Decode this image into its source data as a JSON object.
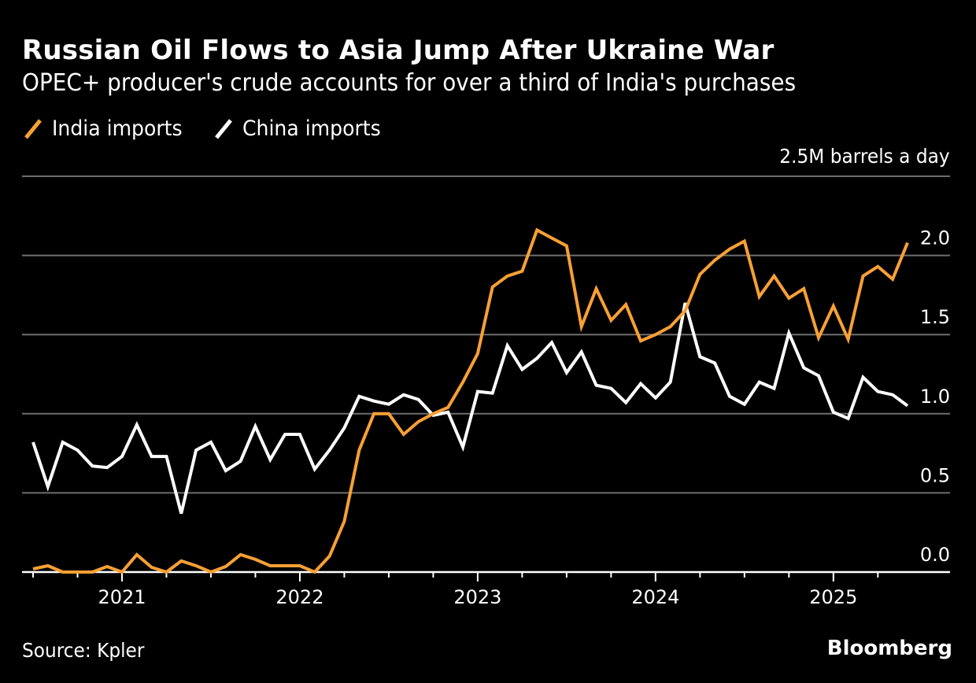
{
  "header": {
    "title": "Russian Oil Flows to Asia Jump After Ukraine War",
    "subtitle": "OPEC+ producer's crude accounts for over a third of India's purchases"
  },
  "legend": [
    {
      "label": "India imports",
      "color": "#f7a035"
    },
    {
      "label": "China imports",
      "color": "#ffffff"
    }
  ],
  "unit_label": "2.5M barrels a day",
  "footer": {
    "source": "Source: Kpler",
    "logo": "Bloomberg"
  },
  "chart_data": {
    "type": "line",
    "title": "Russian Oil Flows to Asia Jump After Ukraine War",
    "subtitle": "OPEC+ producer's crude accounts for over a third of India's purchases",
    "xlabel": "",
    "ylabel": "M barrels a day",
    "ylim": [
      0,
      2.5
    ],
    "yticks": [
      {
        "value": 0,
        "label": "0.0"
      },
      {
        "value": 0.5,
        "label": "0.5"
      },
      {
        "value": 1.0,
        "label": "1.0"
      },
      {
        "value": 1.5,
        "label": "1.5"
      },
      {
        "value": 2.0,
        "label": "2.0"
      },
      {
        "value": 2.5,
        "label": "2.5M barrels a day"
      }
    ],
    "x_start": "2020-07",
    "x_end": "2025-06",
    "x_unit": "month",
    "xtick_labels": [
      {
        "label": "2021",
        "month_index": 6
      },
      {
        "label": "2022",
        "month_index": 18
      },
      {
        "label": "2023",
        "month_index": 30
      },
      {
        "label": "2024",
        "month_index": 42
      },
      {
        "label": "2025",
        "month_index": 54
      }
    ],
    "minor_tick_every_months": 3,
    "grid": true,
    "legend_position": "top-left",
    "x": [
      "2020-07",
      "2020-08",
      "2020-09",
      "2020-10",
      "2020-11",
      "2020-12",
      "2021-01",
      "2021-02",
      "2021-03",
      "2021-04",
      "2021-05",
      "2021-06",
      "2021-07",
      "2021-08",
      "2021-09",
      "2021-10",
      "2021-11",
      "2021-12",
      "2022-01",
      "2022-02",
      "2022-03",
      "2022-04",
      "2022-05",
      "2022-06",
      "2022-07",
      "2022-08",
      "2022-09",
      "2022-10",
      "2022-11",
      "2022-12",
      "2023-01",
      "2023-02",
      "2023-03",
      "2023-04",
      "2023-05",
      "2023-06",
      "2023-07",
      "2023-08",
      "2023-09",
      "2023-10",
      "2023-11",
      "2023-12",
      "2024-01",
      "2024-02",
      "2024-03",
      "2024-04",
      "2024-05",
      "2024-06",
      "2024-07",
      "2024-08",
      "2024-09",
      "2024-10",
      "2024-11",
      "2024-12",
      "2025-01",
      "2025-02",
      "2025-03",
      "2025-04",
      "2025-05",
      "2025-06"
    ],
    "series": [
      {
        "name": "India imports",
        "color": "#f7a035",
        "values": [
          0.02,
          0.04,
          0.0,
          0.0,
          0.0,
          0.035,
          0.0,
          0.11,
          0.03,
          0.0,
          0.07,
          0.04,
          0.0,
          0.035,
          0.11,
          0.08,
          0.04,
          0.04,
          0.04,
          0.0,
          0.1,
          0.32,
          0.77,
          1.0,
          1.0,
          0.87,
          0.95,
          1.0,
          1.04,
          1.2,
          1.38,
          1.8,
          1.87,
          1.9,
          2.16,
          2.11,
          2.06,
          1.55,
          1.79,
          1.59,
          1.69,
          1.46,
          1.5,
          1.55,
          1.65,
          1.88,
          1.97,
          2.04,
          2.09,
          1.74,
          1.87,
          1.73,
          1.79,
          1.48,
          1.68,
          1.47,
          1.87,
          1.93,
          1.85,
          2.08
        ]
      },
      {
        "name": "China imports",
        "color": "#ffffff",
        "values": [
          0.82,
          0.54,
          0.82,
          0.77,
          0.67,
          0.66,
          0.73,
          0.93,
          0.73,
          0.73,
          0.37,
          0.77,
          0.82,
          0.64,
          0.7,
          0.92,
          0.71,
          0.87,
          0.87,
          0.65,
          0.77,
          0.91,
          1.11,
          1.08,
          1.06,
          1.12,
          1.09,
          0.99,
          1.01,
          0.79,
          1.14,
          1.13,
          1.43,
          1.28,
          1.35,
          1.45,
          1.26,
          1.39,
          1.18,
          1.16,
          1.07,
          1.19,
          1.1,
          1.2,
          1.7,
          1.36,
          1.32,
          1.11,
          1.06,
          1.2,
          1.16,
          1.51,
          1.29,
          1.24,
          1.01,
          0.97,
          1.23,
          1.14,
          1.12,
          1.05
        ]
      }
    ],
    "source": "Source: Kpler"
  }
}
